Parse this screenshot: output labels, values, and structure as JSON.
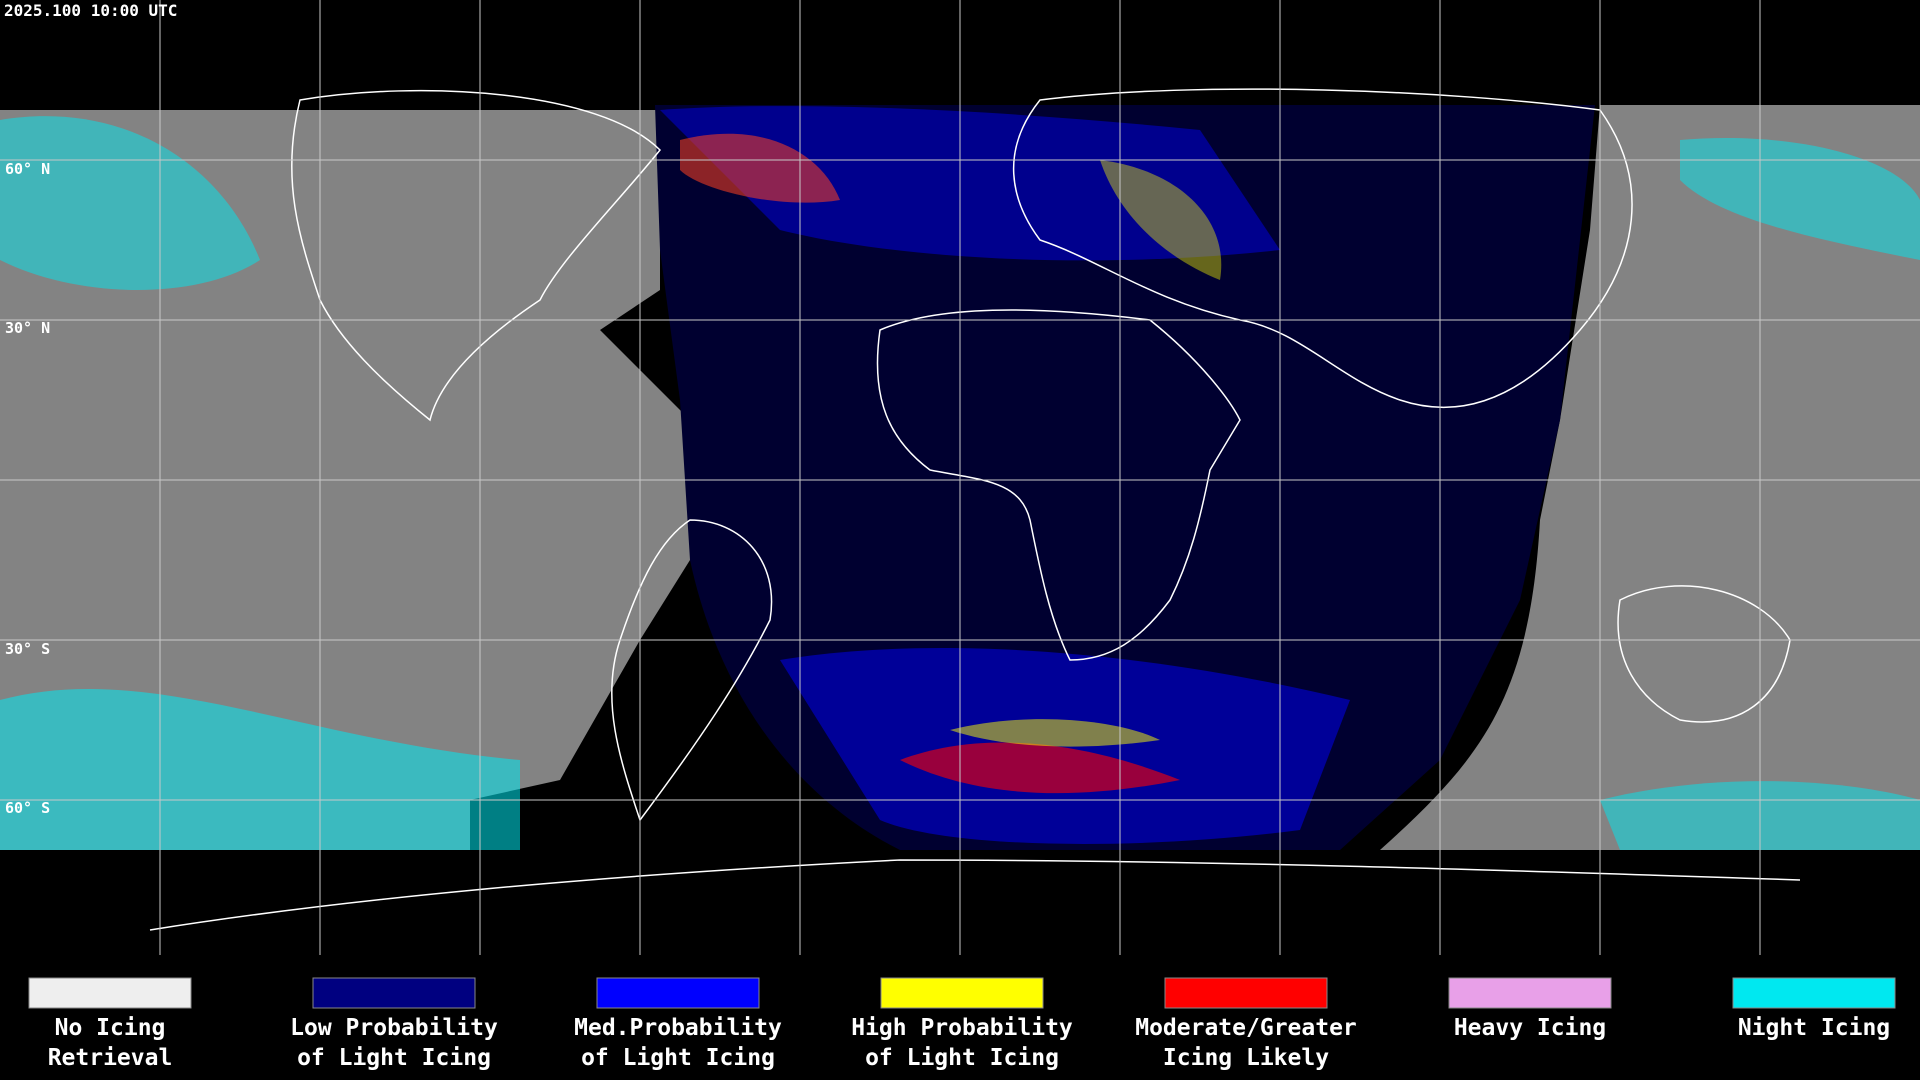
{
  "header": {
    "timestamp": "2025.100 10:00 UTC"
  },
  "map": {
    "latitude_labels": [
      "60° N",
      "30° N",
      "30° S",
      "60° S"
    ]
  },
  "legend": {
    "items": [
      {
        "label": [
          "No Icing",
          "Retrieval"
        ],
        "color": "#eeeeee"
      },
      {
        "label": [
          "Low Probability",
          "of Light Icing"
        ],
        "color": "#000080"
      },
      {
        "label": [
          "Med.Probability",
          "of Light Icing"
        ],
        "color": "#0000ff"
      },
      {
        "label": [
          "High Probability",
          "of Light Icing"
        ],
        "color": "#ffff00"
      },
      {
        "label": [
          "Moderate/Greater",
          "Icing Likely"
        ],
        "color": "#ff0000"
      },
      {
        "label": [
          "Heavy Icing"
        ],
        "color": "#e8a0e8"
      },
      {
        "label": [
          "Night Icing"
        ],
        "color": "#00e8f0"
      }
    ]
  }
}
